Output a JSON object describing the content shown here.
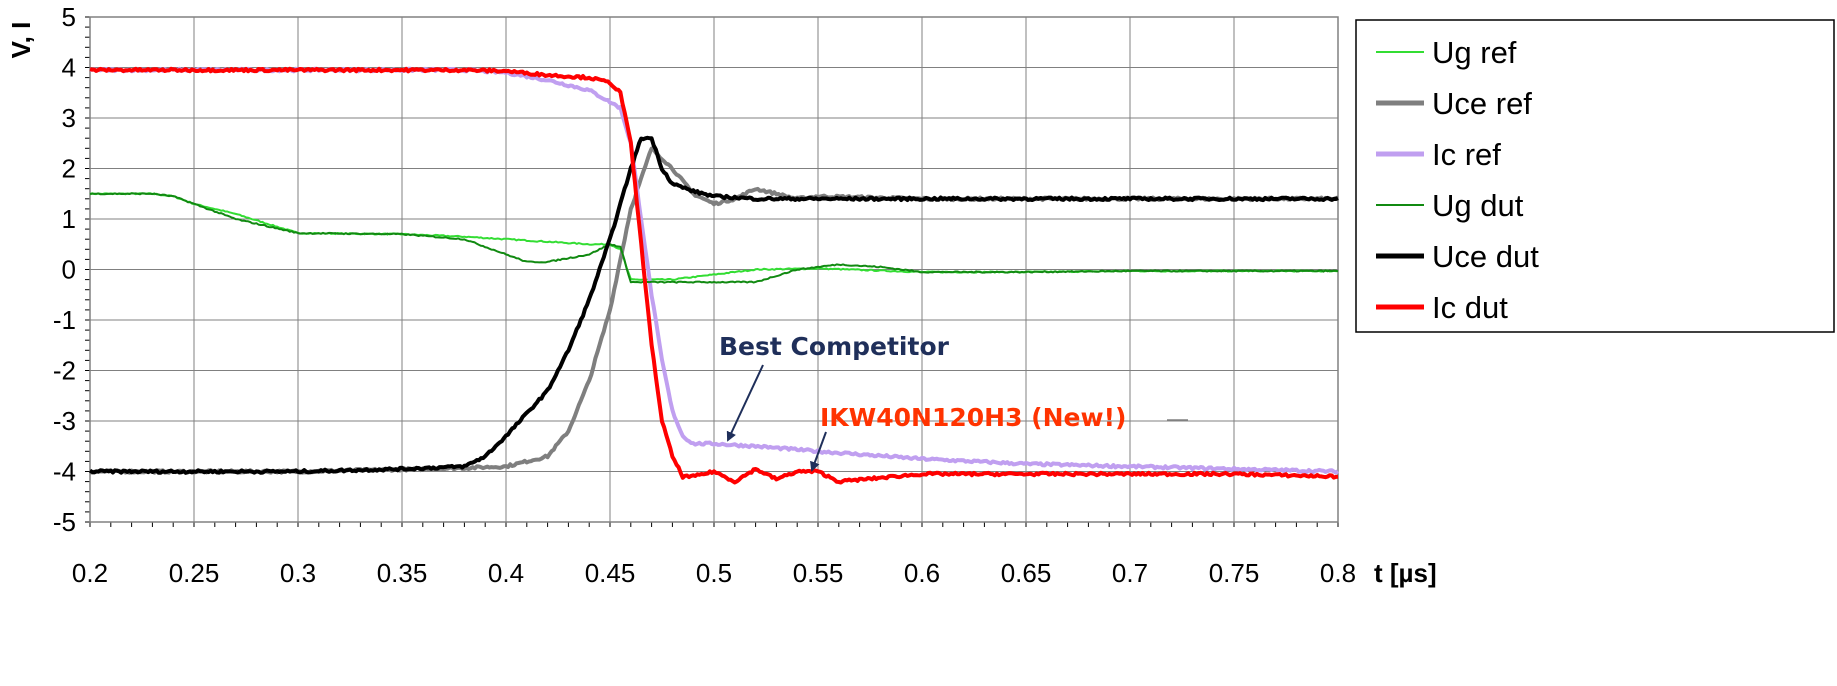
{
  "chart_data": {
    "type": "line",
    "title": "",
    "xlabel": "t [µs]",
    "ylabel": "V, I",
    "xlim": [
      0.2,
      0.8
    ],
    "ylim": [
      -5,
      5
    ],
    "x_ticks": [
      "0.2",
      "0.25",
      "0.3",
      "0.35",
      "0.4",
      "0.45",
      "0.5",
      "0.55",
      "0.6",
      "0.65",
      "0.7",
      "0.75",
      "0.8"
    ],
    "y_ticks": [
      "5",
      "4",
      "3",
      "2",
      "1",
      "0",
      "-1",
      "-2",
      "-3",
      "-4",
      "-5"
    ],
    "grid": true,
    "legend_position": "right",
    "series": [
      {
        "name": "Ug ref",
        "color": "#33dd33",
        "width": 2,
        "x": [
          0.2,
          0.23,
          0.24,
          0.25,
          0.27,
          0.3,
          0.35,
          0.38,
          0.4,
          0.42,
          0.44,
          0.45,
          0.455,
          0.46,
          0.48,
          0.5,
          0.52,
          0.55,
          0.6,
          0.65,
          0.7,
          0.75,
          0.8
        ],
        "y": [
          1.5,
          1.5,
          1.45,
          1.3,
          1.1,
          0.72,
          0.7,
          0.65,
          0.6,
          0.55,
          0.5,
          0.5,
          0.4,
          -0.2,
          -0.2,
          -0.1,
          0.0,
          0.02,
          -0.05,
          -0.05,
          -0.03,
          -0.03,
          -0.03
        ]
      },
      {
        "name": "Uce ref",
        "color": "#7f7f7f",
        "width": 4,
        "x": [
          0.2,
          0.3,
          0.36,
          0.38,
          0.4,
          0.42,
          0.43,
          0.44,
          0.45,
          0.46,
          0.47,
          0.48,
          0.49,
          0.5,
          0.51,
          0.52,
          0.53,
          0.54,
          0.55,
          0.6,
          0.65,
          0.7,
          0.75,
          0.8
        ],
        "y": [
          -4.0,
          -4.0,
          -3.95,
          -3.93,
          -3.9,
          -3.7,
          -3.2,
          -2.2,
          -0.8,
          1.2,
          2.4,
          2.0,
          1.5,
          1.3,
          1.4,
          1.6,
          1.5,
          1.4,
          1.45,
          1.4,
          1.4,
          1.4,
          1.4,
          1.4
        ]
      },
      {
        "name": "Ic ref",
        "color": "#c09ff0",
        "width": 4,
        "x": [
          0.2,
          0.3,
          0.38,
          0.4,
          0.42,
          0.44,
          0.455,
          0.46,
          0.465,
          0.47,
          0.475,
          0.48,
          0.485,
          0.49,
          0.5,
          0.52,
          0.55,
          0.6,
          0.65,
          0.7,
          0.75,
          0.8
        ],
        "y": [
          3.95,
          3.95,
          3.95,
          3.9,
          3.75,
          3.55,
          3.2,
          2.5,
          1.0,
          -0.5,
          -1.8,
          -2.8,
          -3.3,
          -3.45,
          -3.45,
          -3.5,
          -3.6,
          -3.75,
          -3.85,
          -3.9,
          -3.95,
          -4.0
        ]
      },
      {
        "name": "Ug dut",
        "color": "#118a11",
        "width": 2,
        "x": [
          0.2,
          0.23,
          0.24,
          0.25,
          0.27,
          0.3,
          0.35,
          0.38,
          0.4,
          0.41,
          0.42,
          0.44,
          0.45,
          0.455,
          0.46,
          0.5,
          0.52,
          0.54,
          0.56,
          0.58,
          0.6,
          0.65,
          0.7,
          0.75,
          0.8
        ],
        "y": [
          1.5,
          1.5,
          1.45,
          1.3,
          1.0,
          0.72,
          0.7,
          0.6,
          0.3,
          0.15,
          0.15,
          0.3,
          0.5,
          0.45,
          -0.25,
          -0.25,
          -0.25,
          0.0,
          0.1,
          0.05,
          -0.05,
          -0.05,
          -0.03,
          -0.03,
          -0.03
        ]
      },
      {
        "name": "Uce dut",
        "color": "#000000",
        "width": 4,
        "x": [
          0.2,
          0.3,
          0.35,
          0.38,
          0.39,
          0.4,
          0.42,
          0.43,
          0.44,
          0.45,
          0.46,
          0.465,
          0.47,
          0.475,
          0.48,
          0.49,
          0.5,
          0.52,
          0.55,
          0.6,
          0.65,
          0.7,
          0.75,
          0.8
        ],
        "y": [
          -4.0,
          -4.0,
          -3.95,
          -3.9,
          -3.7,
          -3.3,
          -2.4,
          -1.6,
          -0.6,
          0.6,
          2.0,
          2.6,
          2.6,
          2.0,
          1.7,
          1.55,
          1.45,
          1.4,
          1.4,
          1.4,
          1.4,
          1.4,
          1.4,
          1.4
        ]
      },
      {
        "name": "Ic dut",
        "color": "#ff0000",
        "width": 4,
        "x": [
          0.2,
          0.3,
          0.38,
          0.4,
          0.42,
          0.44,
          0.45,
          0.455,
          0.46,
          0.465,
          0.47,
          0.475,
          0.48,
          0.485,
          0.49,
          0.5,
          0.51,
          0.52,
          0.53,
          0.54,
          0.55,
          0.56,
          0.6,
          0.65,
          0.7,
          0.75,
          0.8
        ],
        "y": [
          3.95,
          3.95,
          3.95,
          3.93,
          3.85,
          3.8,
          3.7,
          3.5,
          2.5,
          0.5,
          -1.5,
          -3.0,
          -3.7,
          -4.1,
          -4.1,
          -4.0,
          -4.2,
          -3.95,
          -4.15,
          -4.0,
          -4.0,
          -4.2,
          -4.05,
          -4.05,
          -4.05,
          -4.05,
          -4.1
        ]
      }
    ],
    "annotations": [
      {
        "text": "Best Competitor",
        "color": "#1f2f5a",
        "x": 0.51,
        "y": -3.4
      },
      {
        "text": "IKW40N120H3 (New!)",
        "color": "#ff3300",
        "x": 0.545,
        "y": -3.95
      }
    ]
  }
}
